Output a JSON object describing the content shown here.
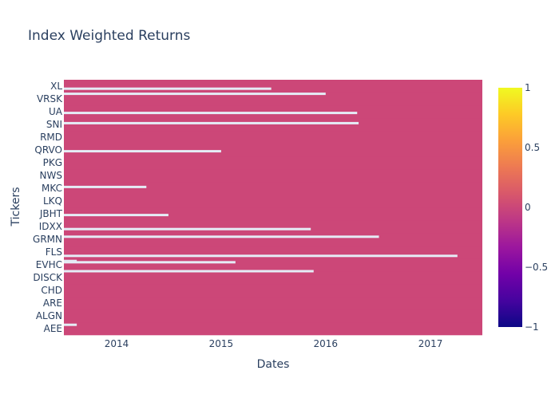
{
  "chart_data": {
    "type": "heatmap",
    "title": "Index Weighted Returns",
    "xlabel": "Dates",
    "ylabel": "Tickers",
    "x_range": [
      "2013-07-01",
      "2017-07-01"
    ],
    "x_ticks": [
      {
        "label": "2014",
        "date": "2014-01-01"
      },
      {
        "label": "2015",
        "date": "2015-01-01"
      },
      {
        "label": "2016",
        "date": "2016-01-01"
      },
      {
        "label": "2017",
        "date": "2017-01-01"
      }
    ],
    "y_labels": [
      "AEE",
      "ALGN",
      "ARE",
      "CHD",
      "DISCK",
      "EVHC",
      "FLS",
      "GRMN",
      "IDXX",
      "JBHT",
      "LKQ",
      "MKC",
      "NWS",
      "PKG",
      "QRVO",
      "RMD",
      "SNI",
      "UA",
      "VRSK",
      "XL"
    ],
    "color_scale": {
      "zmin": -1,
      "zmax": 1,
      "ticks": [
        "1",
        "0.5",
        "0",
        "−0.5",
        "−1"
      ],
      "tick_values": [
        1,
        0.5,
        0,
        -0.5,
        -1
      ],
      "colors": [
        "#0d0887",
        "#46039f",
        "#7201a8",
        "#9c179e",
        "#bd3786",
        "#d8576b",
        "#ed7953",
        "#fb9f3a",
        "#fdca26",
        "#f0f921"
      ]
    },
    "cell_value": 0,
    "cell_color": "#cc4778",
    "missing_color": "#e5ecf6",
    "missing_rows": [
      {
        "row": 0.8,
        "end": "2013-08-15"
      },
      {
        "row": 5.8,
        "end": "2013-08-15"
      },
      {
        "row": 5.0,
        "end": "2015-11-20"
      },
      {
        "row": 6.2,
        "end": "2017-04-05"
      },
      {
        "row": 5.7,
        "end": "2015-02-20"
      },
      {
        "row": 7.7,
        "end": "2016-07-05"
      },
      {
        "row": 8.3,
        "end": "2015-11-10"
      },
      {
        "row": 9.4,
        "end": "2014-07-01"
      },
      {
        "row": 11.6,
        "end": "2014-04-15"
      },
      {
        "row": 14.4,
        "end": "2015-01-01"
      },
      {
        "row": 16.6,
        "end": "2016-04-25"
      },
      {
        "row": 17.4,
        "end": "2016-04-20"
      },
      {
        "row": 18.9,
        "end": "2016-01-01"
      },
      {
        "row": 19.3,
        "end": "2015-06-25"
      }
    ]
  }
}
